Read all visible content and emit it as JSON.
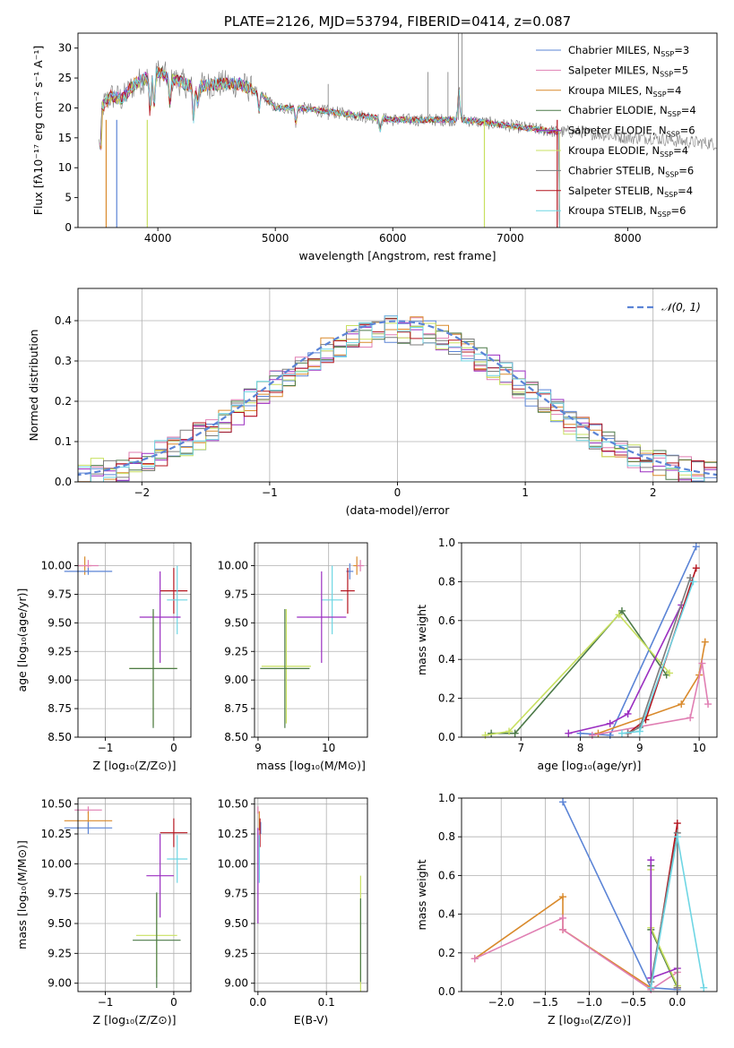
{
  "colors": {
    "blue": "#5b84d6",
    "pink": "#e07fb3",
    "orange": "#d98a2c",
    "darkgreen": "#4c7a48",
    "purple": "#9b2fc1",
    "lime": "#c8e060",
    "gray": "#7c7c7c",
    "red": "#b4141e",
    "cyan": "#6fd6e4"
  },
  "chart_data": [
    {
      "id": "spectrum",
      "type": "line",
      "title": "PLATE=2126, MJD=53794, FIBERID=0414, z=0.087",
      "xlabel": "wavelength [Angstrom, rest frame]",
      "ylabel": "Flux [fλ10⁻¹⁷ erg cm⁻² s⁻¹ A⁻¹]",
      "xlim": [
        3320,
        8760
      ],
      "ylim": [
        0,
        32.5
      ],
      "xticks": [
        "4000",
        "5000",
        "6000",
        "7000",
        "8000"
      ],
      "yticks": [
        "0",
        "5",
        "10",
        "15",
        "20",
        "25",
        "30"
      ],
      "legend_position": "top-right",
      "legend": [
        {
          "label": "Chabrier MILES, N",
          "sub": "SSP",
          "tail": "=3",
          "color": "blue"
        },
        {
          "label": "Salpeter MILES, N",
          "sub": "SSP",
          "tail": "=5",
          "color": "pink"
        },
        {
          "label": "Kroupa MILES, N",
          "sub": "SSP",
          "tail": "=4",
          "color": "orange"
        },
        {
          "label": "Chabrier ELODIE, N",
          "sub": "SSP",
          "tail": "=4",
          "color": "darkgreen"
        },
        {
          "label": "Salpeter ELODIE, N",
          "sub": "SSP",
          "tail": "=6",
          "color": "purple"
        },
        {
          "label": "Kroupa ELODIE, N",
          "sub": "SSP",
          "tail": "=4",
          "color": "lime"
        },
        {
          "label": "Chabrier STELIB, N",
          "sub": "SSP",
          "tail": "=6",
          "color": "gray"
        },
        {
          "label": "Salpeter STELIB, N",
          "sub": "SSP",
          "tail": "=4",
          "color": "red"
        },
        {
          "label": "Kroupa STELIB, N",
          "sub": "SSP",
          "tail": "=6",
          "color": "cyan"
        }
      ],
      "continuum": [
        [
          3520,
          20
        ],
        [
          3600,
          22
        ],
        [
          3700,
          21.5
        ],
        [
          3800,
          24
        ],
        [
          3900,
          25
        ],
        [
          4000,
          26
        ],
        [
          4100,
          25
        ],
        [
          4300,
          23.5
        ],
        [
          4500,
          24
        ],
        [
          4700,
          24
        ],
        [
          4900,
          22
        ],
        [
          5000,
          20
        ],
        [
          5200,
          20
        ],
        [
          5400,
          19.5
        ],
        [
          5600,
          19
        ],
        [
          5800,
          18.5
        ],
        [
          6000,
          18
        ],
        [
          6200,
          18
        ],
        [
          6400,
          18
        ],
        [
          6600,
          18
        ],
        [
          6800,
          17.5
        ],
        [
          7000,
          17
        ],
        [
          7200,
          16.5
        ],
        [
          7400,
          16
        ],
        [
          7600,
          16
        ],
        [
          7800,
          15.5
        ],
        [
          8000,
          15
        ],
        [
          8200,
          15
        ],
        [
          8400,
          14.5
        ],
        [
          8760,
          14
        ]
      ],
      "features": [
        [
          3934,
          -6
        ],
        [
          3969,
          -5
        ],
        [
          4102,
          -4
        ],
        [
          4304,
          -5
        ],
        [
          4340,
          -3
        ],
        [
          4861,
          -3
        ],
        [
          5175,
          -2.5
        ],
        [
          5893,
          -2
        ],
        [
          6563,
          5
        ]
      ]
    },
    {
      "id": "residuals",
      "type": "line",
      "xlabel": "(data-model)/error",
      "ylabel": "Normed distribution",
      "xlim": [
        -2.5,
        2.5
      ],
      "ylim": [
        0,
        0.48
      ],
      "xticks": [
        "−2",
        "−1",
        "0",
        "1",
        "2"
      ],
      "yticks": [
        "0.0",
        "0.1",
        "0.2",
        "0.3",
        "0.4"
      ],
      "legend_position": "top-right",
      "legend_label": "𝒩(0, 1)",
      "normal": {
        "mean": 0,
        "sigma": 1
      }
    },
    {
      "id": "age_vs_Z",
      "type": "scatter",
      "xlabel": "Z [log₁₀(Z/Z⊙)]",
      "ylabel": "age  [log₁₀(age/yr)]",
      "xlim": [
        -1.4,
        0.25
      ],
      "ylim": [
        8.5,
        10.2
      ],
      "xticks": [
        "−1",
        "0"
      ],
      "yticks": [
        "8.50",
        "8.75",
        "9.00",
        "9.25",
        "9.50",
        "9.75",
        "10.00"
      ],
      "points": [
        {
          "x": -1.3,
          "y": 10.0,
          "xerr": 0.1,
          "yerr": 0.08,
          "color": "orange"
        },
        {
          "x": -1.25,
          "y": 10.0,
          "xerr": 0.15,
          "yerr": 0.05,
          "color": "pink"
        },
        {
          "x": -1.25,
          "y": 9.95,
          "xerr": 0.35,
          "yerr": 0.03,
          "color": "blue"
        },
        {
          "x": 0.0,
          "y": 9.78,
          "xerr": 0.2,
          "yerr": 0.2,
          "color": "red"
        },
        {
          "x": 0.05,
          "y": 9.7,
          "xerr": 0.15,
          "yerr": 0.3,
          "color": "cyan"
        },
        {
          "x": -0.2,
          "y": 9.55,
          "xerr": 0.3,
          "yerr": 0.4,
          "color": "purple"
        },
        {
          "x": -0.3,
          "y": 9.1,
          "xerr": 0.35,
          "yerr": 0.5,
          "color": "lime"
        },
        {
          "x": -0.3,
          "y": 9.1,
          "xerr": 0.35,
          "yerr": 0.52,
          "color": "darkgreen"
        }
      ]
    },
    {
      "id": "age_vs_mass",
      "type": "scatter",
      "xlabel": "mass [log₁₀(M/M⊙)]",
      "xlim": [
        8.95,
        10.55
      ],
      "ylim": [
        8.5,
        10.2
      ],
      "xticks": [
        "9",
        "10"
      ],
      "yticks": [
        "8.50",
        "8.75",
        "9.00",
        "9.25",
        "9.50",
        "9.75",
        "10.00"
      ],
      "points": [
        {
          "x": 10.4,
          "y": 10.0,
          "xerr": 0.05,
          "yerr": 0.08,
          "color": "orange"
        },
        {
          "x": 10.45,
          "y": 10.0,
          "xerr": 0.05,
          "yerr": 0.05,
          "color": "pink"
        },
        {
          "x": 10.3,
          "y": 9.95,
          "xerr": 0.05,
          "yerr": 0.07,
          "color": "blue"
        },
        {
          "x": 10.27,
          "y": 9.78,
          "xerr": 0.1,
          "yerr": 0.2,
          "color": "red"
        },
        {
          "x": 10.05,
          "y": 9.7,
          "xerr": 0.15,
          "yerr": 0.3,
          "color": "cyan"
        },
        {
          "x": 9.9,
          "y": 9.55,
          "xerr": 0.35,
          "yerr": 0.4,
          "color": "purple"
        },
        {
          "x": 9.4,
          "y": 9.12,
          "xerr": 0.35,
          "yerr": 0.5,
          "color": "lime"
        },
        {
          "x": 9.38,
          "y": 9.1,
          "xerr": 0.35,
          "yerr": 0.52,
          "color": "darkgreen"
        }
      ]
    },
    {
      "id": "massweight_vs_age",
      "type": "line",
      "xlabel": "age  [log₁₀(age/yr)]",
      "ylabel": "mass weight",
      "xlim": [
        6.0,
        10.3
      ],
      "ylim": [
        0,
        1.0
      ],
      "xticks": [
        "7",
        "8",
        "9",
        "10"
      ],
      "yticks": [
        "0.0",
        "0.2",
        "0.4",
        "0.6",
        "0.8",
        "1.0"
      ],
      "series": [
        {
          "color": "blue",
          "points": [
            [
              8.0,
              0.02
            ],
            [
              8.5,
              0.01
            ],
            [
              9.95,
              0.98
            ]
          ]
        },
        {
          "color": "orange",
          "points": [
            [
              8.3,
              0.02
            ],
            [
              9.7,
              0.17
            ],
            [
              10.0,
              0.32
            ],
            [
              10.1,
              0.49
            ]
          ]
        },
        {
          "color": "pink",
          "points": [
            [
              8.2,
              0.01
            ],
            [
              9.85,
              0.1
            ],
            [
              10.05,
              0.38
            ],
            [
              10.15,
              0.17
            ]
          ]
        },
        {
          "color": "darkgreen",
          "points": [
            [
              6.5,
              0.02
            ],
            [
              6.9,
              0.02
            ],
            [
              8.7,
              0.65
            ],
            [
              9.45,
              0.32
            ]
          ]
        },
        {
          "color": "lime",
          "points": [
            [
              6.4,
              0.01
            ],
            [
              6.8,
              0.03
            ],
            [
              8.65,
              0.63
            ],
            [
              9.5,
              0.33
            ]
          ]
        },
        {
          "color": "purple",
          "points": [
            [
              7.8,
              0.02
            ],
            [
              8.5,
              0.07
            ],
            [
              8.8,
              0.12
            ],
            [
              9.7,
              0.68
            ]
          ]
        },
        {
          "color": "red",
          "points": [
            [
              8.8,
              0.02
            ],
            [
              9.1,
              0.09
            ],
            [
              9.95,
              0.87
            ]
          ]
        },
        {
          "color": "gray",
          "points": [
            [
              8.8,
              0.02
            ],
            [
              9.0,
              0.05
            ],
            [
              9.85,
              0.82
            ]
          ]
        },
        {
          "color": "cyan",
          "points": [
            [
              8.7,
              0.02
            ],
            [
              9.0,
              0.03
            ],
            [
              9.9,
              0.8
            ]
          ]
        }
      ]
    },
    {
      "id": "mass_vs_Z",
      "type": "scatter",
      "xlabel": "Z [log₁₀(Z/Z⊙)]",
      "ylabel": "mass [log₁₀(M/M⊙)]",
      "xlim": [
        -1.4,
        0.25
      ],
      "ylim": [
        8.93,
        10.55
      ],
      "xticks": [
        "−1",
        "0"
      ],
      "yticks": [
        "9.00",
        "9.25",
        "9.50",
        "9.75",
        "10.00",
        "10.25",
        "10.50"
      ],
      "points": [
        {
          "x": -1.25,
          "y": 10.45,
          "xerr": 0.2,
          "yerr": 0.03,
          "color": "pink"
        },
        {
          "x": -1.25,
          "y": 10.36,
          "xerr": 0.35,
          "yerr": 0.08,
          "color": "orange"
        },
        {
          "x": -1.25,
          "y": 10.3,
          "xerr": 0.35,
          "yerr": 0.05,
          "color": "blue"
        },
        {
          "x": 0.0,
          "y": 10.26,
          "xerr": 0.2,
          "yerr": 0.12,
          "color": "red"
        },
        {
          "x": 0.05,
          "y": 10.04,
          "xerr": 0.15,
          "yerr": 0.2,
          "color": "cyan"
        },
        {
          "x": -0.2,
          "y": 9.9,
          "xerr": 0.2,
          "yerr": 0.35,
          "color": "purple"
        },
        {
          "x": -0.25,
          "y": 9.4,
          "xerr": 0.3,
          "yerr": 0.35,
          "color": "lime"
        },
        {
          "x": -0.25,
          "y": 9.36,
          "xerr": 0.35,
          "yerr": 0.4,
          "color": "darkgreen"
        }
      ]
    },
    {
      "id": "mass_vs_EBV",
      "type": "scatter",
      "xlabel": "E(B-V)",
      "xlim": [
        -0.005,
        0.16
      ],
      "ylim": [
        8.93,
        10.55
      ],
      "xticks": [
        "0.0",
        "0.1"
      ],
      "yticks": [
        "9.00",
        "9.25",
        "9.50",
        "9.75",
        "10.00",
        "10.25",
        "10.50"
      ],
      "points": [
        {
          "x": 0.0,
          "y": 10.45,
          "xerr": 0,
          "yerr": 0.03,
          "color": "pink"
        },
        {
          "x": 0.002,
          "y": 10.36,
          "xerr": 0,
          "yerr": 0.08,
          "color": "orange"
        },
        {
          "x": 0.004,
          "y": 10.3,
          "xerr": 0,
          "yerr": 0.05,
          "color": "blue"
        },
        {
          "x": 0.003,
          "y": 10.26,
          "xerr": 0,
          "yerr": 0.12,
          "color": "red"
        },
        {
          "x": 0.002,
          "y": 10.04,
          "xerr": 0,
          "yerr": 0.2,
          "color": "cyan"
        },
        {
          "x": 0.0,
          "y": 9.9,
          "xerr": 0,
          "yerr": 0.4,
          "color": "purple"
        },
        {
          "x": 0.15,
          "y": 9.4,
          "xerr": 0,
          "yerr": 0.5,
          "color": "lime"
        },
        {
          "x": 0.15,
          "y": 9.36,
          "xerr": 0,
          "yerr": 0.35,
          "color": "darkgreen"
        }
      ]
    },
    {
      "id": "massweight_vs_Z",
      "type": "line",
      "xlabel": "Z [log₁₀(Z/Z⊙)]",
      "ylabel": "mass weight",
      "xlim": [
        -2.45,
        0.45
      ],
      "ylim": [
        0,
        1.0
      ],
      "xticks": [
        "−2.0",
        "−1.5",
        "−1.0",
        "−0.5",
        "0.0"
      ],
      "yticks": [
        "0.0",
        "0.2",
        "0.4",
        "0.6",
        "0.8",
        "1.0"
      ],
      "series": [
        {
          "color": "blue",
          "points": [
            [
              -1.3,
              0.98
            ],
            [
              -0.3,
              0.02
            ],
            [
              0.0,
              0.01
            ]
          ]
        },
        {
          "color": "orange",
          "points": [
            [
              -2.3,
              0.17
            ],
            [
              -1.3,
              0.49
            ],
            [
              -1.3,
              0.32
            ],
            [
              -0.3,
              0.02
            ]
          ]
        },
        {
          "color": "pink",
          "points": [
            [
              -2.3,
              0.17
            ],
            [
              -1.3,
              0.38
            ],
            [
              -1.3,
              0.32
            ],
            [
              -0.3,
              0.01
            ],
            [
              0.0,
              0.1
            ]
          ]
        },
        {
          "color": "darkgreen",
          "points": [
            [
              -0.3,
              0.65
            ],
            [
              -0.3,
              0.32
            ],
            [
              0.0,
              0.02
            ]
          ]
        },
        {
          "color": "lime",
          "points": [
            [
              -0.3,
              0.63
            ],
            [
              -0.3,
              0.33
            ],
            [
              0.0,
              0.03
            ]
          ]
        },
        {
          "color": "purple",
          "points": [
            [
              -0.3,
              0.68
            ],
            [
              -0.3,
              0.07
            ],
            [
              0.0,
              0.12
            ]
          ]
        },
        {
          "color": "red",
          "points": [
            [
              -0.3,
              0.02
            ],
            [
              0.0,
              0.87
            ],
            [
              0.0,
              0.02
            ]
          ]
        },
        {
          "color": "gray",
          "points": [
            [
              -0.3,
              0.05
            ],
            [
              0.0,
              0.82
            ],
            [
              0.0,
              0.02
            ]
          ]
        },
        {
          "color": "cyan",
          "points": [
            [
              -0.3,
              0.02
            ],
            [
              0.0,
              0.8
            ],
            [
              0.3,
              0.02
            ]
          ]
        }
      ]
    }
  ]
}
